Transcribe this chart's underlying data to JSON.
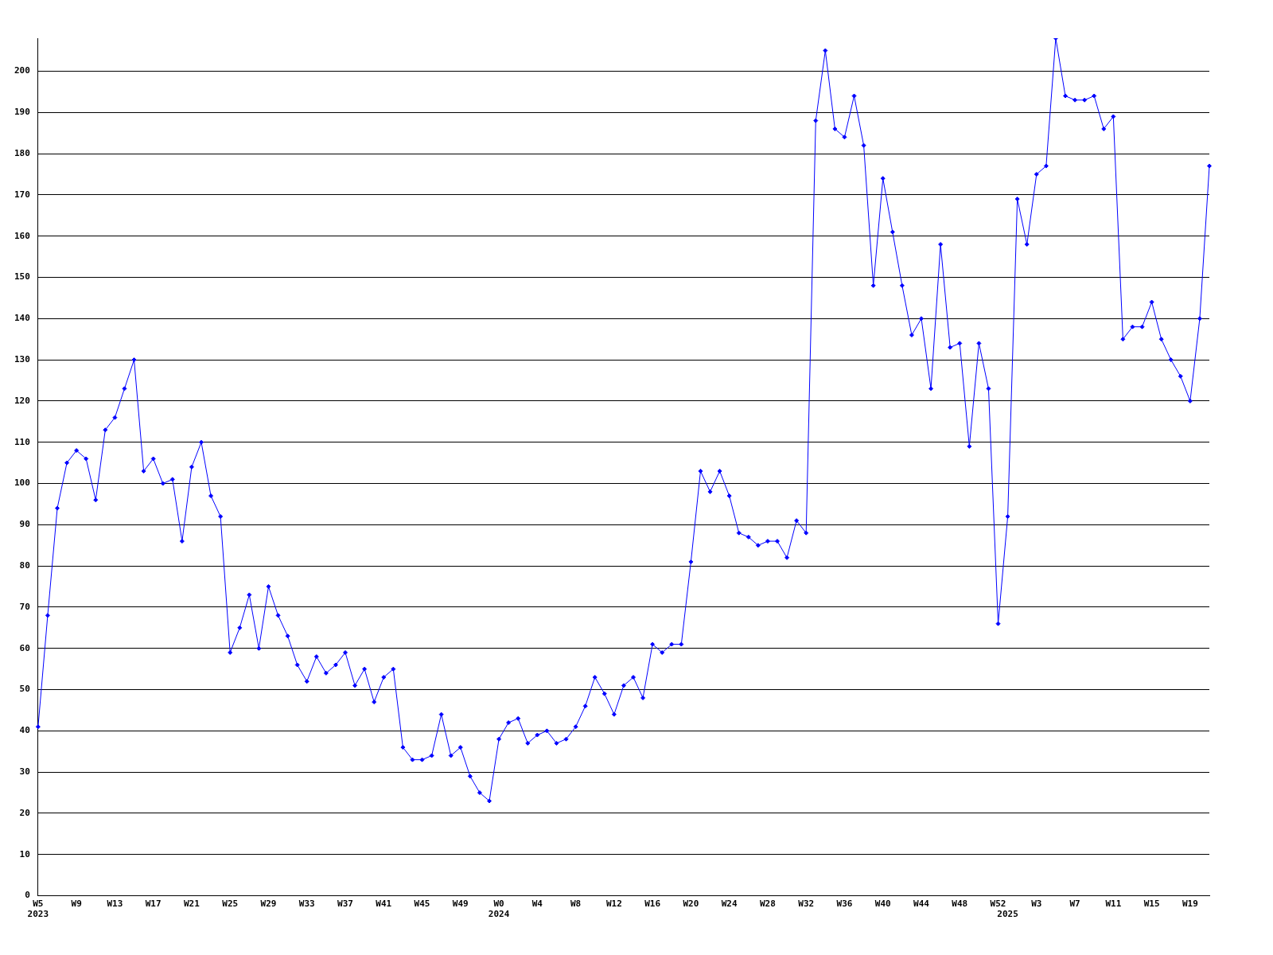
{
  "chart_data": {
    "type": "line",
    "categories": [
      "W5\n2023",
      null,
      null,
      null,
      "W9",
      null,
      null,
      null,
      "W13",
      null,
      null,
      null,
      "W17",
      null,
      null,
      null,
      "W21",
      null,
      null,
      null,
      "W25",
      null,
      null,
      null,
      "W29",
      null,
      null,
      null,
      "W33",
      null,
      null,
      null,
      "W37",
      null,
      null,
      null,
      "W41",
      null,
      null,
      null,
      "W45",
      null,
      null,
      null,
      "W49",
      null,
      null,
      null,
      "W0\n2024",
      null,
      null,
      null,
      "W4",
      null,
      null,
      null,
      "W8",
      null,
      null,
      null,
      "W12",
      null,
      null,
      null,
      "W16",
      null,
      null,
      null,
      "W20",
      null,
      null,
      null,
      "W24",
      null,
      null,
      null,
      "W28",
      null,
      null,
      null,
      "W32",
      null,
      null,
      null,
      "W36",
      null,
      null,
      null,
      "W40",
      null,
      null,
      null,
      "W44",
      null,
      null,
      null,
      "W48",
      null,
      null,
      null,
      "W52",
      "\n2025",
      null,
      null,
      "W3",
      null,
      null,
      null,
      "W7",
      null,
      null,
      null,
      "W11",
      null,
      null,
      null,
      "W15",
      null,
      null,
      null,
      "W19",
      null,
      null
    ],
    "series": [
      {
        "color": "#0000ff",
        "values": [
          41,
          68,
          94,
          105,
          108,
          106,
          96,
          113,
          116,
          123,
          130,
          103,
          106,
          100,
          101,
          86,
          104,
          110,
          97,
          92,
          59,
          65,
          73,
          60,
          75,
          68,
          63,
          56,
          52,
          58,
          54,
          56,
          59,
          51,
          55,
          47,
          53,
          55,
          36,
          33,
          33,
          34,
          44,
          34,
          36,
          29,
          25,
          23,
          38,
          42,
          43,
          37,
          39,
          40,
          37,
          38,
          41,
          46,
          53,
          49,
          44,
          51,
          53,
          48,
          61,
          59,
          61,
          61,
          81,
          103,
          98,
          103,
          97,
          88,
          87,
          85,
          86,
          86,
          82,
          91,
          88,
          188,
          205,
          186,
          184,
          194,
          182,
          148,
          174,
          161,
          148,
          136,
          140,
          123,
          158,
          133,
          134,
          109,
          134,
          123,
          66,
          92,
          169,
          158,
          175,
          177,
          208,
          194,
          193,
          193,
          194,
          186,
          189,
          135,
          138,
          138,
          144,
          135,
          130,
          126,
          120,
          140,
          177
        ]
      }
    ],
    "ylim": [
      0,
      208
    ],
    "yticks": [
      0,
      10,
      20,
      30,
      40,
      50,
      60,
      70,
      80,
      90,
      100,
      110,
      120,
      130,
      140,
      150,
      160,
      170,
      180,
      190,
      200
    ],
    "grid": "y",
    "legend": false,
    "marker": "diamond",
    "line_style": "solid"
  }
}
